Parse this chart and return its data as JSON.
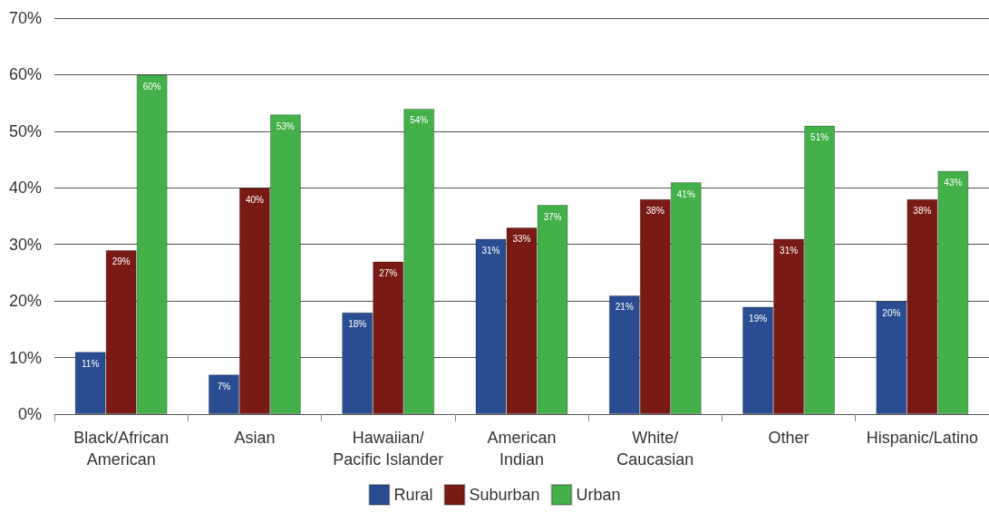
{
  "chart_data": {
    "type": "bar",
    "categories": [
      "Black/African American",
      "Asian",
      "Hawaiian/ Pacific Islander",
      "American Indian",
      "White/ Caucasian",
      "Other",
      "Hispanic/Latino"
    ],
    "series": [
      {
        "name": "Rural",
        "color": "#2a4d91",
        "values": [
          11,
          7,
          18,
          31,
          21,
          19,
          20
        ],
        "value_labels": [
          "11%",
          "7%",
          "18%",
          "31%",
          "21%",
          "19%",
          "20%"
        ]
      },
      {
        "name": "Suburban",
        "color": "#7a1a15",
        "values": [
          29,
          40,
          27,
          33,
          38,
          31,
          38
        ],
        "value_labels": [
          "29%",
          "40%",
          "27%",
          "33%",
          "38%",
          "31%",
          "38%"
        ]
      },
      {
        "name": "Urban",
        "color": "#43b04a",
        "values": [
          60,
          53,
          54,
          37,
          41,
          51,
          43
        ],
        "value_labels": [
          "60%",
          "53%",
          "54%",
          "37%",
          "41%",
          "51%",
          "43%"
        ]
      }
    ],
    "ylim": [
      0,
      70
    ],
    "yticks": [
      {
        "value": 0,
        "label": "0%"
      },
      {
        "value": 10,
        "label": "10%"
      },
      {
        "value": 20,
        "label": "20%"
      },
      {
        "value": 30,
        "label": "30%"
      },
      {
        "value": 40,
        "label": "40%"
      },
      {
        "value": 50,
        "label": "50%"
      },
      {
        "value": 60,
        "label": "60%"
      },
      {
        "value": 70,
        "label": "70%"
      }
    ],
    "grid": "y",
    "legend": "bottom"
  }
}
